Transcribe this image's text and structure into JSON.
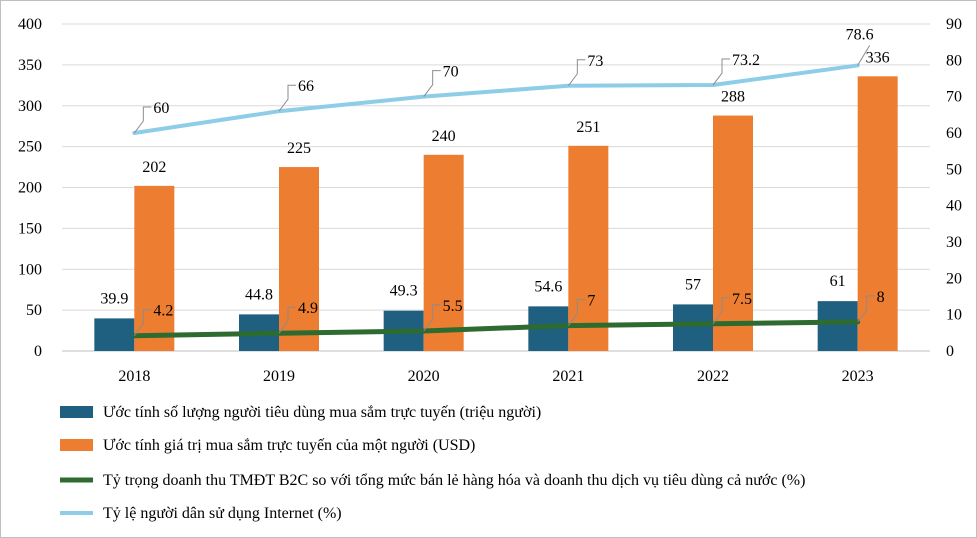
{
  "chart_data": {
    "type": "bar",
    "categories": [
      "2018",
      "2019",
      "2020",
      "2021",
      "2022",
      "2023"
    ],
    "y_left": {
      "min": 0,
      "max": 400,
      "step": 50,
      "tick_labels": [
        "0",
        "50",
        "100",
        "150",
        "200",
        "250",
        "300",
        "350",
        "400"
      ]
    },
    "y_right": {
      "min": 0,
      "max": 90,
      "step": 10,
      "tick_labels": [
        "0",
        "10",
        "20",
        "30",
        "40",
        "50",
        "60",
        "70",
        "80",
        "90"
      ]
    },
    "grid": true,
    "legend_position": "bottom",
    "series": [
      {
        "name": "Ước tính số lượng người tiêu dùng mua sắm trực tuyến (triệu người)",
        "type": "bar",
        "axis": "left",
        "color": "#1f5f7f",
        "values": [
          39.9,
          44.8,
          49.3,
          54.6,
          57,
          61
        ],
        "labels": [
          "39.9",
          "44.8",
          "49.3",
          "54.6",
          "57",
          "61"
        ]
      },
      {
        "name": "Ước tính giá trị mua sắm trực tuyến của một người (USD)",
        "type": "bar",
        "axis": "left",
        "color": "#ed7d31",
        "values": [
          202,
          225,
          240,
          251,
          288,
          336
        ],
        "labels": [
          "202",
          "225",
          "240",
          "251",
          "288",
          "336"
        ]
      },
      {
        "name": "Tỷ trọng doanh thu TMĐT B2C so với tổng mức bán lẻ hàng hóa và doanh thu dịch vụ tiêu dùng cả nước (%)",
        "type": "line",
        "axis": "right",
        "color": "#2e6b30",
        "values": [
          4.2,
          4.9,
          5.5,
          7,
          7.5,
          8
        ],
        "labels": [
          "4.2",
          "4.9",
          "5.5",
          "7",
          "7.5",
          "8"
        ]
      },
      {
        "name": "Tỷ lệ người dân sử dụng Internet (%)",
        "type": "line",
        "axis": "right",
        "color": "#8ecde8",
        "values": [
          60,
          66,
          70,
          73,
          73.2,
          78.6
        ],
        "labels": [
          "60",
          "66",
          "70",
          "73",
          "73.2",
          "78.6"
        ]
      }
    ]
  }
}
